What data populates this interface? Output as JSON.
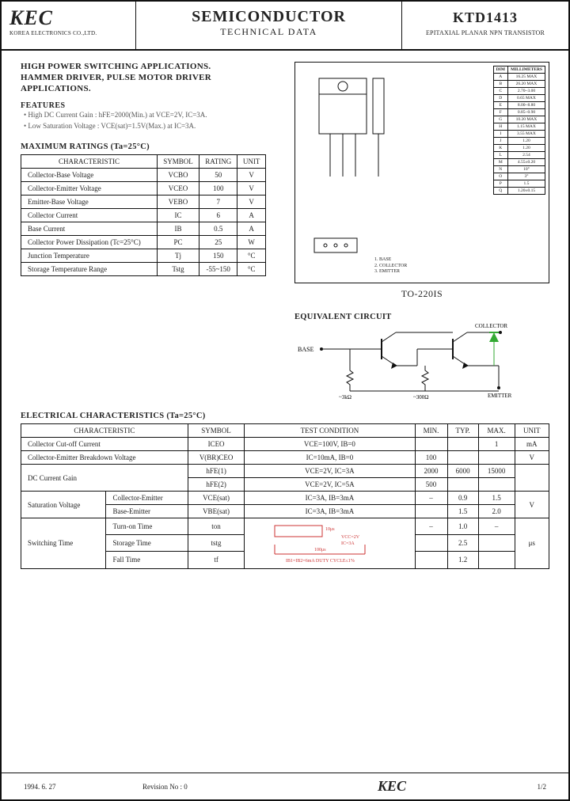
{
  "header": {
    "logo": "KEC",
    "logo_sub": "KOREA ELECTRONICS CO.,LTD.",
    "title": "SEMICONDUCTOR",
    "subtitle": "TECHNICAL DATA",
    "part": "KTD1413",
    "part_desc": "EPITAXIAL PLANAR NPN TRANSISTOR"
  },
  "applications": {
    "line1": "HIGH POWER SWITCHING APPLICATIONS.",
    "line2": "HAMMER DRIVER, PULSE MOTOR DRIVER",
    "line3": "APPLICATIONS."
  },
  "features": {
    "title": "FEATURES",
    "items": [
      "High DC Current Gain : hFE=2000(Min.) at VCE=2V, IC=3A.",
      "Low Saturation Voltage : VCE(sat)=1.5V(Max.) at IC=3A."
    ]
  },
  "max_ratings": {
    "title": "MAXIMUM RATINGS (Ta=25°C)",
    "headers": [
      "CHARACTERISTIC",
      "SYMBOL",
      "RATING",
      "UNIT"
    ],
    "rows": [
      [
        "Collector-Base Voltage",
        "VCBO",
        "50",
        "V"
      ],
      [
        "Collector-Emitter Voltage",
        "VCEO",
        "100",
        "V"
      ],
      [
        "Emitter-Base Voltage",
        "VEBO",
        "7",
        "V"
      ],
      [
        "Collector Current",
        "IC",
        "6",
        "A"
      ],
      [
        "Base Current",
        "IB",
        "0.5",
        "A"
      ],
      [
        "Collector Power Dissipation (Tc=25°C)",
        "PC",
        "25",
        "W"
      ],
      [
        "Junction Temperature",
        "Tj",
        "150",
        "°C"
      ],
      [
        "Storage Temperature Range",
        "Tstg",
        "-55~150",
        "°C"
      ]
    ]
  },
  "package": {
    "label": "TO-220IS",
    "dim_header": [
      "DIM",
      "MILLIMETERS"
    ],
    "dims": [
      [
        "A",
        "16.25 MAX"
      ],
      [
        "B",
        "26.20 MAX"
      ],
      [
        "C",
        "2.70~3.00"
      ],
      [
        "D",
        "0.65 MAX"
      ],
      [
        "E",
        "8.00~8.80"
      ],
      [
        "F",
        "0.85~0.90"
      ],
      [
        "G",
        "10.20 MAX"
      ],
      [
        "H",
        "1.15 MAX"
      ],
      [
        "I",
        "3.55 MAX"
      ],
      [
        "J",
        "1.20"
      ],
      [
        "K",
        "1.20"
      ],
      [
        "L",
        "2.54"
      ],
      [
        "M",
        "4.55±0.20"
      ],
      [
        "N",
        "10°"
      ],
      [
        "O",
        "3°"
      ],
      [
        "P",
        "1.5"
      ],
      [
        "Q",
        "1.20±0.15"
      ]
    ],
    "pins": [
      "1. BASE",
      "2. COLLECTOR",
      "3. EMITTER"
    ]
  },
  "equiv": {
    "title": "EQUIVALENT CIRCUIT",
    "labels": {
      "base": "BASE",
      "collector": "COLLECTOR",
      "emitter": "EMITTER",
      "r1": "~3kΩ",
      "r2": "~300Ω"
    }
  },
  "elec": {
    "title": "ELECTRICAL CHARACTERISTICS (Ta=25°C)",
    "headers": [
      "CHARACTERISTIC",
      "SYMBOL",
      "TEST CONDITION",
      "MIN.",
      "TYP.",
      "MAX.",
      "UNIT"
    ],
    "rows": [
      {
        "char": "Collector Cut-off Current",
        "sym": "ICEO",
        "cond": "VCE=100V, IB=0",
        "min": "",
        "typ": "",
        "max": "1",
        "unit": "mA"
      },
      {
        "char": "Collector-Emitter Breakdown Voltage",
        "sym": "V(BR)CEO",
        "cond": "IC=10mA, IB=0",
        "min": "100",
        "typ": "",
        "max": "",
        "unit": "V"
      },
      {
        "char": "DC Current Gain",
        "sym": "hFE(1)",
        "cond": "VCE=2V, IC=3A",
        "min": "2000",
        "typ": "6000",
        "max": "15000",
        "unit": ""
      },
      {
        "char": "",
        "sym": "hFE(2)",
        "cond": "VCE=2V, IC=5A",
        "min": "500",
        "typ": "",
        "max": "",
        "unit": ""
      },
      {
        "char_group": "Saturation Voltage",
        "sub": "Collector-Emitter",
        "sym": "VCE(sat)",
        "cond": "IC=3A, IB=3mA",
        "min": "–",
        "typ": "0.9",
        "max": "1.5",
        "unit": "V"
      },
      {
        "sub": "Base-Emitter",
        "sym": "VBE(sat)",
        "cond": "IC=3A, IB=3mA",
        "min": "",
        "typ": "1.5",
        "max": "2.0",
        "unit": ""
      },
      {
        "char_group": "Switching Time",
        "sub": "Turn-on Time",
        "sym": "ton",
        "cond_diagram": true,
        "min": "–",
        "typ": "1.0",
        "max": "–",
        "unit": "μs"
      },
      {
        "sub": "Storage Time",
        "sym": "tstg",
        "min": "",
        "typ": "2.5",
        "max": "",
        "unit": ""
      },
      {
        "sub": "Fall Time",
        "sym": "tf",
        "min": "",
        "typ": "1.2",
        "max": "",
        "unit": ""
      }
    ],
    "diagram_text": {
      "l1": "VCC=2V",
      "l2": "IC=3A",
      "l3": "IB1=IB2=6mA",
      "l4": "DUTY CYCLE≤1%",
      "l5": "10μs",
      "l6": "100μs"
    }
  },
  "footer": {
    "date": "1994. 6. 27",
    "rev": "Revision No : 0",
    "brand": "KEC",
    "page": "1/2"
  },
  "colors": {
    "text": "#222",
    "border": "#111",
    "faint": "#555",
    "diagram_red": "#c33"
  }
}
